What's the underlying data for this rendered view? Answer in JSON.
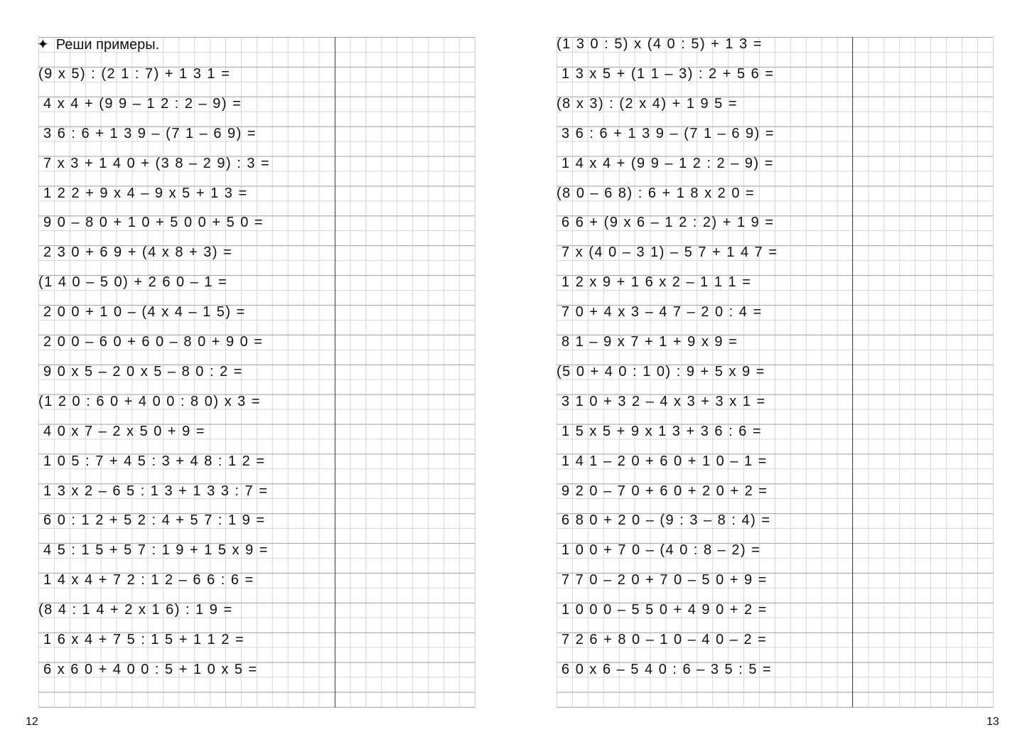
{
  "left_page": {
    "instruction": "Реши примеры.",
    "instruction_icon": "four-point-star-icon",
    "page_number": "12",
    "problems": [
      "(9 x 5) : (2 1 : 7) + 1 3 1 =",
      " 4 x 4 + (9 9 – 1 2 : 2 – 9) =",
      " 3 6 : 6 + 1 3 9 – (7 1 – 6 9) =",
      " 7 x 3 + 1 4 0 + (3 8 – 2 9) : 3 =",
      " 1 2 2 + 9 x 4 – 9 x 5 + 1 3 =",
      " 9 0 – 8 0 + 1 0 + 5 0 0 + 5 0 =",
      " 2 3 0 + 6 9 + (4 x 8 + 3) =",
      "(1 4 0 – 5 0) + 2 6 0 – 1 =",
      " 2 0 0 + 1 0 – (4 x 4 – 1 5) =",
      " 2 0 0 – 6 0 + 6 0 – 8 0 + 9 0 =",
      " 9 0 x 5 – 2 0 x 5 – 8 0 : 2 =",
      "(1 2 0 : 6 0 + 4 0 0 : 8 0) x 3 =",
      " 4 0 x 7 – 2 x 5 0 + 9 =",
      " 1 0 5 : 7 + 4 5 : 3 + 4 8 : 1 2 =",
      " 1 3 x 2 – 6 5 : 1 3 + 1 3 3 : 7 =",
      " 6 0 : 1 2 + 5 2 : 4 + 5 7 : 1 9 =",
      " 4 5 : 1 5 + 5 7 : 1 9 + 1 5 x 9 =",
      " 1 4 x 4 + 7 2 : 1 2 – 6 6 : 6 =",
      "(8 4 : 1 4 + 2 x 1 6) : 1 9 =",
      " 1 6 x 4 + 7 5 : 1 5 + 1 1 2 =",
      " 6 x 6 0 + 4 0 0 : 5 + 1 0 x 5 ="
    ]
  },
  "right_page": {
    "page_number": "13",
    "problems": [
      "(1 3 0 : 5) x (4 0 : 5) + 1 3 =",
      " 1 3 x 5 + (1 1 – 3) : 2 + 5 6 =",
      "(8 x 3) : (2 x 4) + 1 9 5 =",
      " 3 6 : 6 + 1 3 9 – (7 1 – 6 9) =",
      " 1 4 x 4 + (9 9 – 1 2 : 2 – 9) =",
      "(8 0 – 6 8) : 6 + 1 8 x 2 0 =",
      " 6 6 + (9 x 6 – 1 2 : 2) + 1 9 =",
      " 7 x (4 0 – 3 1) – 5 7 + 1 4 7 =",
      " 1 2 x 9 + 1 6 x 2 – 1 1 1 =",
      " 7 0 + 4 x 3 – 4 7 – 2 0 : 4 =",
      " 8 1 – 9 x 7 + 1 + 9 x 9 =",
      "(5 0 + 4 0 : 1 0) : 9 + 5 x 9 =",
      " 3 1 0 + 3 2 – 4 x 3 + 3 x 1 =",
      " 1 5 x 5 + 9 x 1 3 + 3 6 : 6 =",
      " 1 4 1 – 2 0 + 6 0 + 1 0 – 1 =",
      " 9 2 0 – 7 0 + 6 0 + 2 0 + 2 =",
      " 6 8 0 + 2 0 – (9 : 3 – 8 : 4) =",
      " 1 0 0 + 7 0 – (4 0 : 8 – 2) =",
      " 7 7 0 – 2 0 + 7 0 – 5 0 + 9 =",
      " 1 0 0 0 – 5 5 0 + 4 9 0 + 2 =",
      " 7 2 6 + 8 0 – 1 0 – 4 0 – 2 =",
      " 6 0 x 6 – 5 4 0 : 6 – 3 5 : 5 ="
    ]
  }
}
